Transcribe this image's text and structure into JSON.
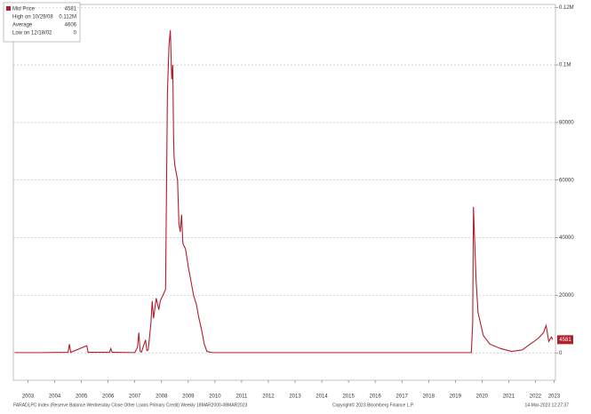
{
  "chart_data": {
    "type": "line",
    "footer_left": "FARADLPC Index (Reserve Balance Wednesday Close Other Loans Primary Credit)  Weekly 18MAR2000-08MAR2023",
    "footer_center": "Copyright© 2023 Bloomberg Finance L.P.",
    "footer_right": "14-Mar-2023 12:27:37",
    "legend": {
      "high_label": "High on 10/29/08",
      "high_value": "0.112M",
      "average_label": "Average",
      "average_value": 4606,
      "low_label": "Low on 12/18/02",
      "low_value": 0
    },
    "x": [
      2003.0,
      2004.0,
      2005.0,
      2005.05,
      2005.1,
      2005.7,
      2005.75,
      2006.55,
      2006.6,
      2006.65,
      2007.5,
      2007.6,
      2007.65,
      2007.7,
      2007.75,
      2007.9,
      2007.95,
      2008.0,
      2008.1,
      2008.15,
      2008.2,
      2008.3,
      2008.4,
      2008.45,
      2008.55,
      2008.65,
      2008.72,
      2008.78,
      2008.83,
      2008.88,
      2008.92,
      2008.95,
      2008.97,
      2009.0,
      2009.1,
      2009.15,
      2009.2,
      2009.25,
      2009.3,
      2009.4,
      2009.5,
      2009.6,
      2009.7,
      2009.8,
      2009.9,
      2010.0,
      2010.1,
      2010.2,
      2010.4,
      2012.0,
      2015.0,
      2018.0,
      2020.1,
      2020.15,
      2020.18,
      2020.22,
      2020.28,
      2020.35,
      2020.45,
      2020.55,
      2020.8,
      2021.2,
      2021.6,
      2022.0,
      2022.3,
      2022.6,
      2022.8,
      2022.9,
      2023.0,
      2023.1,
      2023.15
    ],
    "series": [
      {
        "name": "Mid Price",
        "color": "#b0202c",
        "values": [
          100,
          100,
          200,
          3000,
          200,
          2500,
          200,
          200,
          1500,
          200,
          100,
          2000,
          7000,
          500,
          300,
          4500,
          800,
          1000,
          10000,
          18000,
          12000,
          19000,
          15000,
          18000,
          20000,
          22000,
          90000,
          107000,
          112000,
          95000,
          100000,
          75000,
          68000,
          65000,
          60000,
          45000,
          42000,
          48000,
          38000,
          36000,
          30000,
          25000,
          20000,
          17000,
          12000,
          8000,
          3000,
          500,
          100,
          100,
          100,
          100,
          100,
          10000,
          50700,
          40000,
          25000,
          14000,
          10000,
          6000,
          3000,
          1500,
          500,
          1000,
          3000,
          5000,
          7000,
          9500,
          4000,
          5500,
          4581
        ]
      }
    ],
    "xlim": [
      2002.95,
      2023.25
    ],
    "xticks": [
      {
        "value": 2003.5,
        "label": "2003"
      },
      {
        "value": 2004.5,
        "label": "2004"
      },
      {
        "value": 2005.5,
        "label": "2005"
      },
      {
        "value": 2006.5,
        "label": "2006"
      },
      {
        "value": 2007.5,
        "label": "2007"
      },
      {
        "value": 2008.5,
        "label": "2008"
      },
      {
        "value": 2009.5,
        "label": "2009"
      },
      {
        "value": 2010.5,
        "label": "2010"
      },
      {
        "value": 2011.5,
        "label": "2011"
      },
      {
        "value": 2012.5,
        "label": "2012"
      },
      {
        "value": 2013.5,
        "label": "2013"
      },
      {
        "value": 2014.5,
        "label": "2014"
      },
      {
        "value": 2015.5,
        "label": "2015"
      },
      {
        "value": 2016.5,
        "label": "2016"
      },
      {
        "value": 2017.5,
        "label": "2017"
      },
      {
        "value": 2018.5,
        "label": "2018"
      },
      {
        "value": 2019.5,
        "label": "2019"
      },
      {
        "value": 2020.5,
        "label": "2020"
      },
      {
        "value": 2021.5,
        "label": "2021"
      },
      {
        "value": 2022.5,
        "label": "2022"
      },
      {
        "value": 2023.2,
        "label": "2023"
      }
    ],
    "ylim": [
      -9500,
      121000
    ],
    "yticks": [
      0,
      20000,
      40000,
      60000,
      80000,
      {
        "value": 100000,
        "label": "0.1M"
      },
      {
        "value": 120000,
        "label": "0.12M"
      }
    ],
    "grid": true
  }
}
